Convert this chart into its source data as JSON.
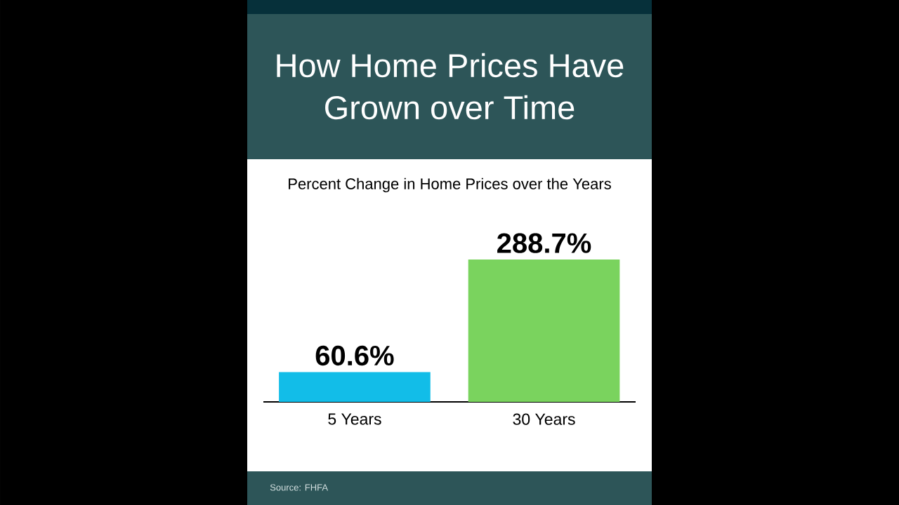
{
  "chart_data": {
    "type": "bar",
    "title": "How Home Prices Have Grown over Time",
    "subtitle": "Percent Change in Home Prices over the Years",
    "categories": [
      "5 Years",
      "30 Years"
    ],
    "values": [
      60.6,
      288.7
    ],
    "colors": [
      "#12bde8",
      "#7ad35e"
    ],
    "value_labels": [
      "60.6%",
      "288.7%"
    ],
    "annotations": [
      "Source: FHFA"
    ]
  }
}
